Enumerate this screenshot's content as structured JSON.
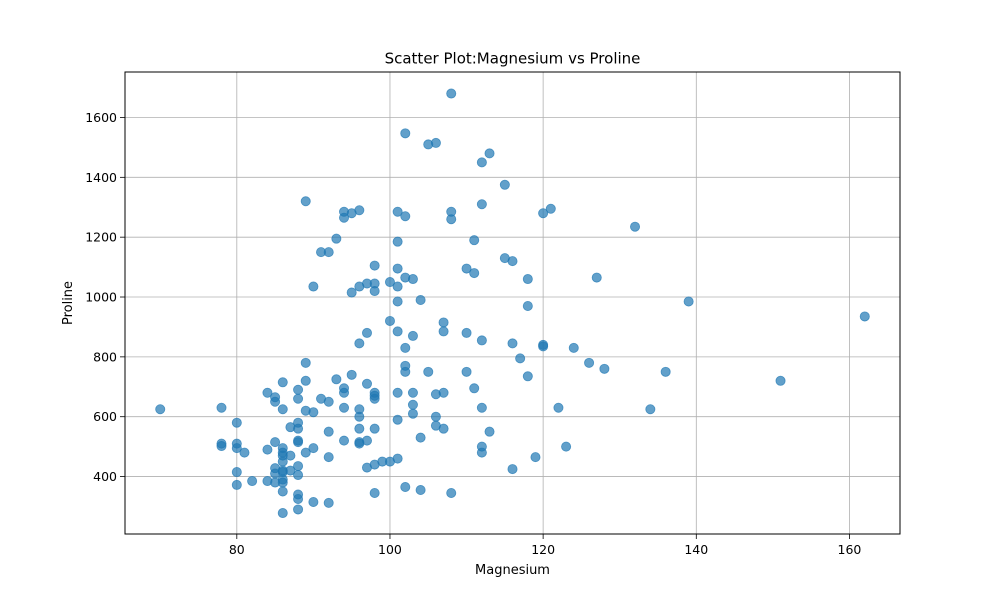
{
  "chart_data": {
    "type": "scatter",
    "title": "Scatter Plot:Magnesium vs Proline",
    "xlabel": "Magnesium",
    "ylabel": "Proline",
    "xlim": [
      65.4,
      166.6
    ],
    "ylim": [
      208,
      1752
    ],
    "xticks": [
      80,
      100,
      120,
      140,
      160
    ],
    "yticks": [
      400,
      600,
      800,
      1000,
      1200,
      1400,
      1600
    ],
    "grid": true,
    "marker_color": "#1f77b4",
    "marker_alpha": 0.7,
    "points": [
      [
        70,
        625
      ],
      [
        78,
        630
      ],
      [
        78,
        510
      ],
      [
        78,
        502
      ],
      [
        80,
        580
      ],
      [
        80,
        510
      ],
      [
        80,
        495
      ],
      [
        80,
        415
      ],
      [
        80,
        372
      ],
      [
        81,
        480
      ],
      [
        82,
        385
      ],
      [
        84,
        680
      ],
      [
        84,
        490
      ],
      [
        84,
        385
      ],
      [
        85,
        665
      ],
      [
        85,
        650
      ],
      [
        85,
        515
      ],
      [
        85,
        428
      ],
      [
        85,
        410
      ],
      [
        85,
        380
      ],
      [
        86,
        715
      ],
      [
        86,
        625
      ],
      [
        86,
        495
      ],
      [
        86,
        480
      ],
      [
        86,
        470
      ],
      [
        86,
        450
      ],
      [
        86,
        420
      ],
      [
        86,
        415
      ],
      [
        86,
        390
      ],
      [
        86,
        380
      ],
      [
        86,
        350
      ],
      [
        86,
        278
      ],
      [
        87,
        565
      ],
      [
        87,
        470
      ],
      [
        87,
        420
      ],
      [
        88,
        690
      ],
      [
        88,
        660
      ],
      [
        88,
        580
      ],
      [
        88,
        560
      ],
      [
        88,
        520
      ],
      [
        88,
        515
      ],
      [
        88,
        435
      ],
      [
        88,
        405
      ],
      [
        88,
        340
      ],
      [
        88,
        325
      ],
      [
        88,
        290
      ],
      [
        89,
        1320
      ],
      [
        89,
        780
      ],
      [
        89,
        720
      ],
      [
        89,
        620
      ],
      [
        89,
        480
      ],
      [
        90,
        1035
      ],
      [
        90,
        615
      ],
      [
        90,
        495
      ],
      [
        90,
        315
      ],
      [
        91,
        1150
      ],
      [
        91,
        660
      ],
      [
        92,
        1150
      ],
      [
        92,
        650
      ],
      [
        92,
        550
      ],
      [
        92,
        465
      ],
      [
        92,
        312
      ],
      [
        93,
        1195
      ],
      [
        93,
        725
      ],
      [
        94,
        1285
      ],
      [
        94,
        1265
      ],
      [
        94,
        695
      ],
      [
        94,
        680
      ],
      [
        94,
        630
      ],
      [
        94,
        520
      ],
      [
        95,
        1280
      ],
      [
        95,
        1015
      ],
      [
        95,
        740
      ],
      [
        96,
        1290
      ],
      [
        96,
        1035
      ],
      [
        96,
        845
      ],
      [
        96,
        625
      ],
      [
        96,
        600
      ],
      [
        96,
        560
      ],
      [
        96,
        515
      ],
      [
        96,
        510
      ],
      [
        97,
        1045
      ],
      [
        97,
        880
      ],
      [
        97,
        710
      ],
      [
        97,
        520
      ],
      [
        97,
        430
      ],
      [
        98,
        1105
      ],
      [
        98,
        1045
      ],
      [
        98,
        1020
      ],
      [
        98,
        680
      ],
      [
        98,
        670
      ],
      [
        98,
        660
      ],
      [
        98,
        560
      ],
      [
        98,
        440
      ],
      [
        98,
        345
      ],
      [
        99,
        450
      ],
      [
        100,
        1050
      ],
      [
        100,
        920
      ],
      [
        100,
        450
      ],
      [
        101,
        1285
      ],
      [
        101,
        1185
      ],
      [
        101,
        1095
      ],
      [
        101,
        1035
      ],
      [
        101,
        985
      ],
      [
        101,
        885
      ],
      [
        101,
        680
      ],
      [
        101,
        590
      ],
      [
        101,
        460
      ],
      [
        102,
        1547
      ],
      [
        102,
        1270
      ],
      [
        102,
        1065
      ],
      [
        102,
        830
      ],
      [
        102,
        770
      ],
      [
        102,
        750
      ],
      [
        102,
        365
      ],
      [
        103,
        1060
      ],
      [
        103,
        870
      ],
      [
        103,
        680
      ],
      [
        103,
        640
      ],
      [
        103,
        610
      ],
      [
        104,
        990
      ],
      [
        104,
        530
      ],
      [
        104,
        355
      ],
      [
        105,
        1510
      ],
      [
        105,
        750
      ],
      [
        106,
        1515
      ],
      [
        106,
        675
      ],
      [
        106,
        600
      ],
      [
        106,
        570
      ],
      [
        107,
        915
      ],
      [
        107,
        885
      ],
      [
        107,
        680
      ],
      [
        107,
        560
      ],
      [
        108,
        1680
      ],
      [
        108,
        1285
      ],
      [
        108,
        1260
      ],
      [
        108,
        345
      ],
      [
        110,
        1095
      ],
      [
        110,
        880
      ],
      [
        110,
        750
      ],
      [
        111,
        1190
      ],
      [
        111,
        1080
      ],
      [
        111,
        695
      ],
      [
        112,
        1450
      ],
      [
        112,
        1310
      ],
      [
        112,
        855
      ],
      [
        112,
        630
      ],
      [
        112,
        500
      ],
      [
        112,
        480
      ],
      [
        113,
        1480
      ],
      [
        113,
        550
      ],
      [
        115,
        1375
      ],
      [
        115,
        1130
      ],
      [
        116,
        1120
      ],
      [
        116,
        845
      ],
      [
        116,
        425
      ],
      [
        117,
        795
      ],
      [
        118,
        1060
      ],
      [
        118,
        970
      ],
      [
        118,
        735
      ],
      [
        119,
        465
      ],
      [
        120,
        1280
      ],
      [
        120,
        840
      ],
      [
        120,
        835
      ],
      [
        121,
        1295
      ],
      [
        122,
        630
      ],
      [
        123,
        500
      ],
      [
        124,
        830
      ],
      [
        126,
        780
      ],
      [
        127,
        1065
      ],
      [
        128,
        760
      ],
      [
        132,
        1235
      ],
      [
        134,
        625
      ],
      [
        136,
        750
      ],
      [
        139,
        985
      ],
      [
        151,
        720
      ],
      [
        162,
        935
      ]
    ]
  }
}
